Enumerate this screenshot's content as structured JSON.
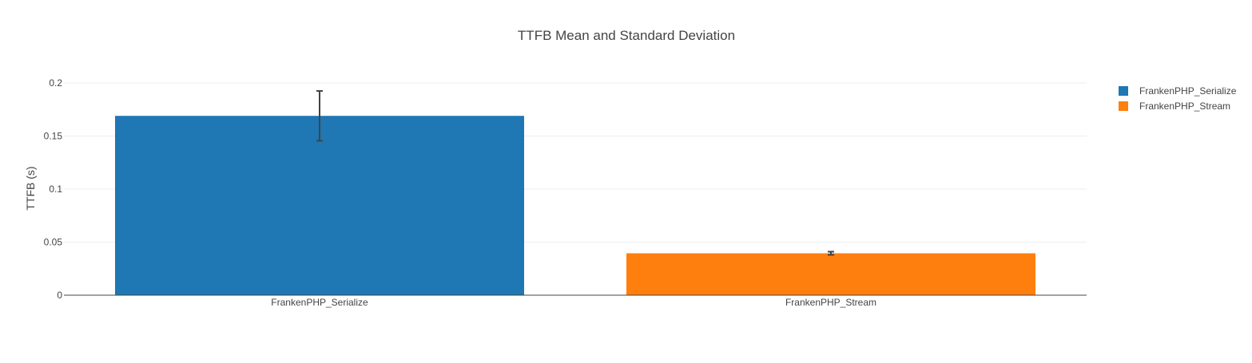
{
  "chart_data": {
    "type": "bar",
    "title": "TTFB Mean and Standard Deviation",
    "xlabel": "",
    "ylabel": "TTFB (s)",
    "ylim": [
      0,
      0.2
    ],
    "yticks": [
      {
        "value": 0,
        "label": "0"
      },
      {
        "value": 0.05,
        "label": "0.05"
      },
      {
        "value": 0.1,
        "label": "0.1"
      },
      {
        "value": 0.15,
        "label": "0.15"
      },
      {
        "value": 0.2,
        "label": "0.2"
      }
    ],
    "grid": true,
    "legend_position": "top-right",
    "categories": [
      "FrankenPHP_Serialize",
      "FrankenPHP_Stream"
    ],
    "series": [
      {
        "name": "FrankenPHP_Serialize",
        "color": "#1f77b4",
        "category": "FrankenPHP_Serialize",
        "value": 0.169,
        "error": 0.0235
      },
      {
        "name": "FrankenPHP_Stream",
        "color": "#ff7f0e",
        "category": "FrankenPHP_Stream",
        "value": 0.0395,
        "error": 0.0015
      }
    ]
  }
}
